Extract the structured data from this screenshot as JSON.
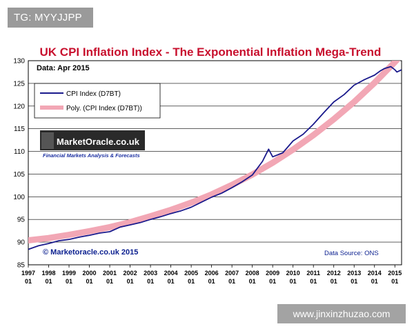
{
  "overlay": {
    "tag_text": "TG: MYYJJPP",
    "site_text": "www.jinxinzhuzao.com"
  },
  "colors": {
    "title": "#c8102e",
    "series_cpi": "#1a1a8c",
    "series_poly": "#f2a7b5",
    "footer_text": "#0a1f8f"
  },
  "chart_data": {
    "type": "line",
    "title": "UK CPI Inflation Index - The Exponential Inflation Mega-Trend",
    "subtitle": "Data: Apr 2015",
    "xlabel": "",
    "ylabel": "",
    "ylim": [
      85,
      130
    ],
    "yticks": [
      85,
      90,
      95,
      100,
      105,
      110,
      115,
      120,
      125,
      130
    ],
    "xlim": [
      1997.0,
      2015.33
    ],
    "xticks": [
      {
        "year": "1997",
        "month": "01"
      },
      {
        "year": "1998",
        "month": "01"
      },
      {
        "year": "1999",
        "month": "01"
      },
      {
        "year": "2000",
        "month": "01"
      },
      {
        "year": "2001",
        "month": "01"
      },
      {
        "year": "2002",
        "month": "01"
      },
      {
        "year": "2003",
        "month": "01"
      },
      {
        "year": "2004",
        "month": "01"
      },
      {
        "year": "2005",
        "month": "01"
      },
      {
        "year": "2006",
        "month": "01"
      },
      {
        "year": "2007",
        "month": "01"
      },
      {
        "year": "2008",
        "month": "01"
      },
      {
        "year": "2009",
        "month": "01"
      },
      {
        "year": "2010",
        "month": "01"
      },
      {
        "year": "2011",
        "month": "01"
      },
      {
        "year": "2012",
        "month": "01"
      },
      {
        "year": "2013",
        "month": "01"
      },
      {
        "year": "2014",
        "month": "01"
      },
      {
        "year": "2015",
        "month": "01"
      }
    ],
    "grid": true,
    "legend": {
      "placement": "top-left",
      "entries": [
        "CPI Index (D7BT)",
        "Poly. (CPI Index (D7BT))"
      ]
    },
    "series": [
      {
        "name": "CPI Index (D7BT)",
        "x": [
          1997.0,
          1997.5,
          1998.0,
          1998.5,
          1999.0,
          1999.5,
          2000.0,
          2000.5,
          2001.0,
          2001.5,
          2002.0,
          2002.5,
          2003.0,
          2003.5,
          2004.0,
          2004.5,
          2005.0,
          2005.5,
          2006.0,
          2006.5,
          2007.0,
          2007.5,
          2008.0,
          2008.5,
          2008.8,
          2009.0,
          2009.5,
          2010.0,
          2010.5,
          2011.0,
          2011.5,
          2012.0,
          2012.5,
          2013.0,
          2013.5,
          2014.0,
          2014.3,
          2014.5,
          2014.8,
          2015.0,
          2015.1,
          2015.33
        ],
        "values": [
          88.4,
          89.2,
          89.7,
          90.3,
          90.6,
          91.1,
          91.5,
          92.0,
          92.3,
          93.3,
          93.8,
          94.3,
          95.0,
          95.6,
          96.3,
          96.9,
          97.7,
          98.8,
          99.9,
          100.8,
          102.0,
          103.3,
          104.8,
          107.8,
          110.5,
          108.8,
          109.7,
          112.3,
          113.8,
          116.0,
          118.5,
          120.9,
          122.5,
          124.6,
          125.8,
          126.8,
          127.8,
          128.3,
          128.7,
          128.0,
          127.5,
          128.0
        ]
      },
      {
        "name": "Poly. (CPI Index (D7BT))",
        "x": [
          1997.0,
          1998.0,
          1999.0,
          2000.0,
          2001.0,
          2002.0,
          2003.0,
          2004.0,
          2005.0,
          2006.0,
          2007.0,
          2008.0,
          2009.0,
          2010.0,
          2011.0,
          2012.0,
          2013.0,
          2014.0,
          2015.0,
          2015.33
        ],
        "values": [
          90.4,
          90.9,
          91.6,
          92.4,
          93.3,
          94.4,
          95.7,
          97.1,
          98.7,
          100.5,
          102.6,
          104.9,
          107.5,
          110.4,
          113.6,
          117.1,
          120.9,
          125.1,
          129.7,
          131.3
        ]
      }
    ],
    "annotations": {
      "footer_left": "© Marketoracle.co.uk 2015",
      "footer_right": "Data Source: ONS",
      "logo_text": "MarketOracle.co.uk",
      "logo_tagline": "Financial Markets Analysis & Forecasts"
    }
  }
}
